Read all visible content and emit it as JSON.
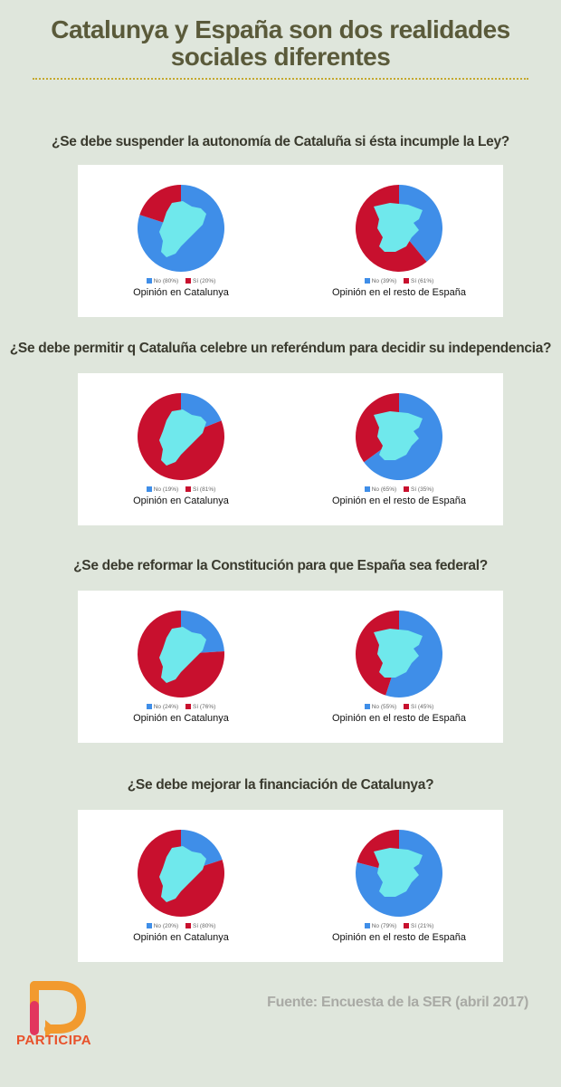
{
  "title": {
    "line1": "Catalunya y España son dos realidades",
    "line2": "sociales diferentes"
  },
  "colors": {
    "no": "#3f8ee8",
    "si": "#c8102e",
    "map": "#6fe8ec",
    "title": "#5a5a3a",
    "rule": "#c4a82e"
  },
  "chart_data": [
    {
      "type": "pie",
      "title": "¿Se debe suspender la autonomía de Cataluña si ésta incumple la Ley?",
      "pies": [
        {
          "caption": "Opinión en Catalunya",
          "map": "catalunya",
          "slices": [
            {
              "label": "No (80%)",
              "name": "No",
              "value": 80
            },
            {
              "label": "Sí (20%)",
              "name": "Sí",
              "value": 20
            }
          ]
        },
        {
          "caption": "Opinión en el resto de España",
          "map": "espana",
          "slices": [
            {
              "label": "No (39%)",
              "name": "No",
              "value": 39
            },
            {
              "label": "Sí (61%)",
              "name": "Sí",
              "value": 61
            }
          ]
        }
      ]
    },
    {
      "type": "pie",
      "title": "¿Se debe permitir q Cataluña celebre un referéndum para decidir su independencia?",
      "pies": [
        {
          "caption": "Opinión en Catalunya",
          "map": "catalunya",
          "slices": [
            {
              "label": "No (19%)",
              "name": "No",
              "value": 19
            },
            {
              "label": "Sí (81%)",
              "name": "Sí",
              "value": 81
            }
          ]
        },
        {
          "caption": "Opinión en el resto de España",
          "map": "espana",
          "slices": [
            {
              "label": "No (65%)",
              "name": "No",
              "value": 65
            },
            {
              "label": "Sí (35%)",
              "name": "Sí",
              "value": 35
            }
          ]
        }
      ]
    },
    {
      "type": "pie",
      "title": "¿Se debe reformar la Constitución para que España sea federal?",
      "pies": [
        {
          "caption": "Opinión en Catalunya",
          "map": "catalunya",
          "slices": [
            {
              "label": "No (24%)",
              "name": "No",
              "value": 24
            },
            {
              "label": "Sí (76%)",
              "name": "Sí",
              "value": 76
            }
          ]
        },
        {
          "caption": "Opinión en el resto de España",
          "map": "espana",
          "slices": [
            {
              "label": "No (55%)",
              "name": "No",
              "value": 55
            },
            {
              "label": "Sí (45%)",
              "name": "Sí",
              "value": 45
            }
          ]
        }
      ]
    },
    {
      "type": "pie",
      "title": "¿Se debe mejorar la financiación de Catalunya?",
      "pies": [
        {
          "caption": "Opinión en Catalunya",
          "map": "catalunya",
          "slices": [
            {
              "label": "No (20%)",
              "name": "No",
              "value": 20
            },
            {
              "label": "Sí (80%)",
              "name": "Sí",
              "value": 80
            }
          ]
        },
        {
          "caption": "Opinión en el resto de España",
          "map": "espana",
          "slices": [
            {
              "label": "No (79%)",
              "name": "No",
              "value": 79
            },
            {
              "label": "Sí (21%)",
              "name": "Sí",
              "value": 21
            }
          ]
        }
      ]
    }
  ],
  "source": "Fuente: Encuesta de la SER (abril 2017)",
  "logo": {
    "text": "PARTICIPA",
    "icon": "participa-logo-icon"
  }
}
